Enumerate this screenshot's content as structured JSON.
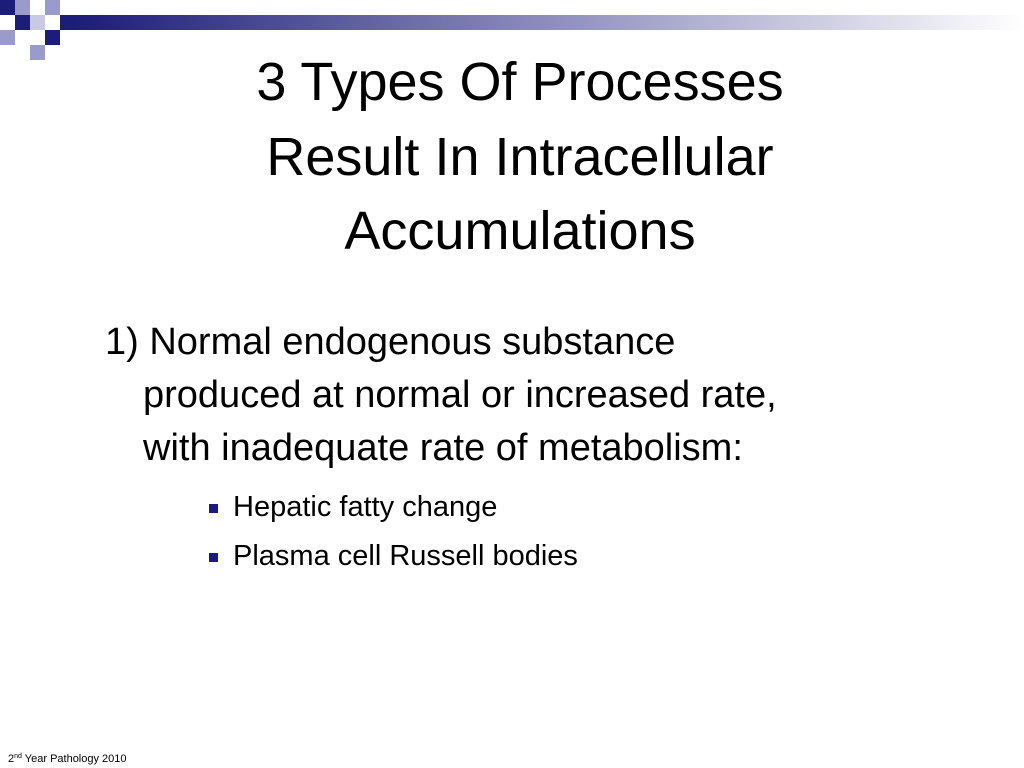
{
  "slide": {
    "title_lines": [
      "3 Types Of Processes",
      "Result In Intracellular",
      "Accumulations"
    ],
    "point": {
      "lines": [
        "1) Normal endogenous substance",
        "produced at normal or increased rate,",
        "with inadequate rate of metabolism:"
      ],
      "bullets": [
        "Hepatic fatty change",
        "Plasma cell Russell bodies"
      ]
    },
    "footer": {
      "number": "2",
      "suffix": "nd",
      "text": "Year Pathology 2010"
    }
  }
}
